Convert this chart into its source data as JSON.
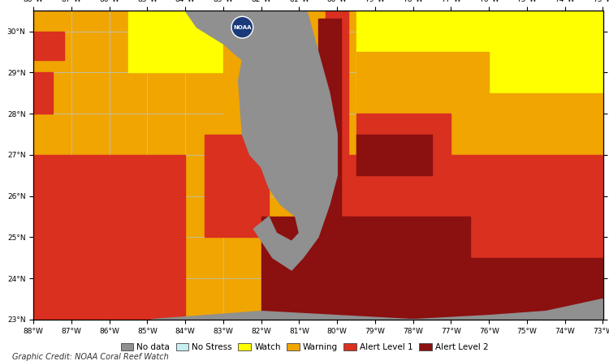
{
  "credit": "Graphic Credit: NOAA Coral Reef Watch",
  "lon_min": -88,
  "lon_max": -73,
  "lat_min": 23,
  "lat_max": 30.5,
  "xticks": [
    -88,
    -87,
    -86,
    -85,
    -84,
    -83,
    -82,
    -81,
    -80,
    -79,
    -78,
    -77,
    -76,
    -75,
    -74,
    -73
  ],
  "yticks": [
    23,
    24,
    25,
    26,
    27,
    28,
    29,
    30
  ],
  "colors": {
    "no_data": "#808080",
    "no_stress": "#c8eef0",
    "watch": "#ffff00",
    "warning": "#f0a500",
    "alert1": "#d93020",
    "alert2": "#8b1010",
    "land": "#909090"
  },
  "legend_labels": [
    "No data",
    "No Stress",
    "Watch",
    "Warning",
    "Alert Level 1",
    "Alert Level 2"
  ],
  "legend_colors": [
    "#909090",
    "#c8eef0",
    "#ffff00",
    "#f0a500",
    "#d93020",
    "#8b1010"
  ],
  "grid_color": "#c0c0a0",
  "fig_bg": "#ffffff"
}
